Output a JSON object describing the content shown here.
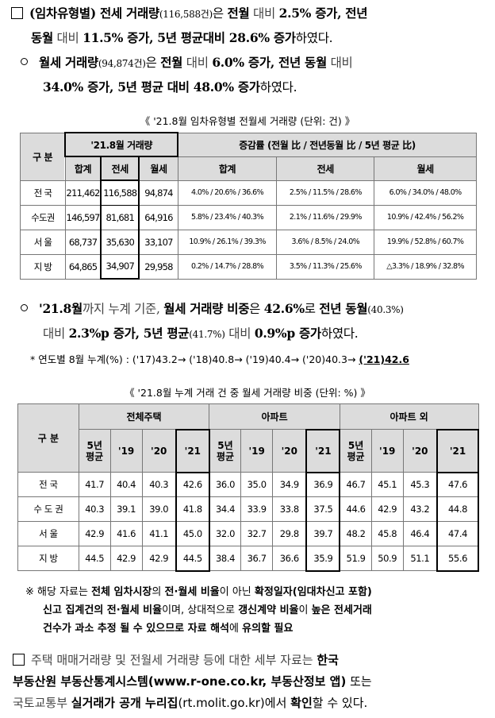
{
  "p1": {
    "s1": "(임차유형별) 전세 거래량",
    "s2": "(116,588건)",
    "s3": "은 ",
    "s4": "전월",
    "s5": " 대비 ",
    "s6": "2.5% 증가, 전년",
    "s7": "동월",
    "s8": " 대비 ",
    "s9": "11.5% 증가, 5년 평균대비 28.6% 증가",
    "s10": "하였다."
  },
  "p2": {
    "s1": "월세 거래량",
    "s2": "(94,874건)",
    "s3": "은 ",
    "s4": "전월",
    "s5": " 대비 ",
    "s6": "6.0% 증가, 전년 동월",
    "s7": " 대비",
    "s8": "34.0% 증가, 5년 평균 대비 48.0% 증가",
    "s9": "하였다."
  },
  "table1": {
    "caption": "《 '21.8월 임차유형별 전월세 거래량 (단위: 건) 》",
    "h_gubun": "구 분",
    "h_volume": "'21.8월 거래량",
    "h_rate": "증감률 (전월 比 / 전년동월 比 / 5년 평균 比)",
    "h_sub": [
      "합계",
      "전세",
      "월세",
      "합계",
      "전세",
      "월세"
    ],
    "rows": [
      {
        "region": "전 국",
        "total": "211,462",
        "jeonse": "116,588",
        "wolse": "94,874",
        "r_total": "4.0% /  20.6% / 36.6%",
        "r_jeonse": "2.5% / 11.5% / 28.6%",
        "r_wolse": "6.0% / 34.0% / 48.0%"
      },
      {
        "region": "수도권",
        "total": "146,597",
        "jeonse": "81,681",
        "wolse": "64,916",
        "r_total": "5.8% / 23.4% / 40.3%",
        "r_jeonse": "2.1% / 11.6% / 29.9%",
        "r_wolse": "10.9% / 42.4% / 56.2%"
      },
      {
        "region": "서 울",
        "total": "68,737",
        "jeonse": "35,630",
        "wolse": "33,107",
        "r_total": "10.9% / 26.1% / 39.3%",
        "r_jeonse": "3.6% / 8.5% / 24.0%",
        "r_wolse": "19.9% / 52.8% / 60.7%"
      },
      {
        "region": "지 방",
        "total": "64,865",
        "jeonse": "34,907",
        "wolse": "29,958",
        "r_total": "0.2% /  14.7% / 28.8%",
        "r_jeonse": "3.5% / 11.3% / 25.6%",
        "r_wolse": "△3.3% / 18.9% / 32.8%"
      }
    ]
  },
  "p3": {
    "s1": "'21.8월",
    "s2": "까지 누계 기준, ",
    "s3": "월세 거래량 비중",
    "s4": "은 ",
    "s5": "42.6%",
    "s6": "로 ",
    "s7": "전년 동월",
    "s8": "(40.3%)",
    "s9": "대비 ",
    "s10": "2.3%p 증가, 5년 평균",
    "s11": "(41.7%)",
    "s12": " 대비 ",
    "s13": "0.9%p 증가",
    "s14": "하였다."
  },
  "note1": {
    "text": "* 연도별 8월 누계(%) : ('17)43.2→ ('18)40.8→ ('19)40.4→ ('20)40.3→ ",
    "last": "('21)42.6"
  },
  "table2": {
    "caption": "《 '21.8월 누계 거래 건 중 월세 거래량 비중 (단위: %) 》",
    "h_gubun": "구 분",
    "groups": [
      "전체주택",
      "아파트",
      "아파트 외"
    ],
    "sub": [
      "5년\n평균",
      "'19",
      "'20",
      "'21"
    ],
    "rows": [
      {
        "region": "전 국",
        "v": [
          "41.7",
          "40.4",
          "40.3",
          "42.6",
          "36.0",
          "35.0",
          "34.9",
          "36.9",
          "46.7",
          "45.1",
          "45.3",
          "47.6"
        ]
      },
      {
        "region": "수 도 권",
        "v": [
          "40.3",
          "39.1",
          "39.0",
          "41.8",
          "34.4",
          "33.9",
          "33.8",
          "37.5",
          "44.6",
          "42.9",
          "43.2",
          "44.8"
        ]
      },
      {
        "region": "서 울",
        "v": [
          "42.9",
          "41.6",
          "41.1",
          "45.0",
          "32.0",
          "32.7",
          "29.8",
          "39.7",
          "48.2",
          "45.8",
          "46.4",
          "47.4"
        ]
      },
      {
        "region": "지 방",
        "v": [
          "44.5",
          "42.9",
          "42.9",
          "44.5",
          "38.4",
          "36.7",
          "36.6",
          "35.9",
          "51.9",
          "50.9",
          "51.1",
          "55.6"
        ]
      }
    ]
  },
  "note2": {
    "s1": "※ 해당 자료는 ",
    "s2": "전체 임차시장",
    "s3": "의 ",
    "s4": "전·월세 비율",
    "s5": "이 아닌 ",
    "s6": "확정일자(임대차신고 포함)",
    "s7": "신고 집계건의 전·월세 비율",
    "s8": "이며, 상대적으로 ",
    "s9": "갱신계약 비율",
    "s10": "이 ",
    "s11": "높은 전세거래",
    "s12": "건수가 과소 추정 될 수 있으므로 자료 해석",
    "s13": "에 ",
    "s14": "유의할 필요"
  },
  "p4": {
    "s1": "주택 매매거래량 및 전월세 거래량 등에 대한 세부 자료는 ",
    "s2": "한국",
    "s3": "부동산원 부동산통계시스템(www.r-one.co.kr, 부동산정보 앱)",
    "s4": " 또는",
    "s5": "국토교통부 ",
    "s6": "실거래가 공개 누리집",
    "s7": "(rt.molit.go.kr)",
    "s8": "에서 ",
    "s9": "확인",
    "s10": "할 수 있다."
  }
}
